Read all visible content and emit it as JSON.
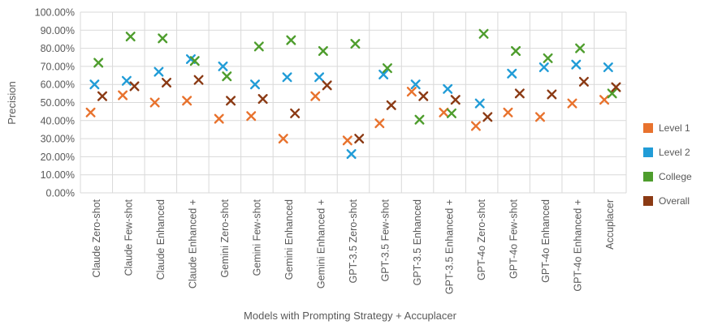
{
  "chart_data": {
    "type": "scatter",
    "marker": "x",
    "title": "",
    "xlabel": "Models with Prompting Strategy + Accuplacer",
    "ylabel": "Precision",
    "ylim": [
      0,
      100
    ],
    "ytick_step": 10,
    "ytick_labels": [
      "0.00%",
      "10.00%",
      "20.00%",
      "30.00%",
      "40.00%",
      "50.00%",
      "60.00%",
      "70.00%",
      "80.00%",
      "90.00%",
      "100.00%"
    ],
    "grid": true,
    "legend_position": "right",
    "categories": [
      "Claude Zero-shot",
      "Claude Few-shot",
      "Claude Enhanced",
      "Claude Enhanced +",
      "Gemini Zero-shot",
      "Gemini Few-shot",
      "Gemini Enhanced",
      "Gemini Enhanced +",
      "GPT-3.5 Zero-shot",
      "GPT-3.5 Few-shot",
      "GPT-3.5 Enhanced",
      "GPT-3.5 Enhanced +",
      "GPT-4o Zero-shot",
      "GPT-4o Few-shot",
      "GPT-4o Enhanced",
      "GPT-4o Enhanced +",
      "Accuplacer"
    ],
    "series": [
      {
        "name": "Level 1",
        "color": "#E8722D",
        "values": [
          44.5,
          54,
          50,
          51,
          41,
          42.5,
          30,
          53.5,
          29,
          38.5,
          56,
          44.5,
          37,
          44.5,
          42,
          49.5,
          51.5
        ]
      },
      {
        "name": "Level 2",
        "color": "#219CD7",
        "values": [
          60,
          62,
          67,
          74,
          70,
          60,
          64,
          64,
          21.5,
          65.5,
          60,
          57.5,
          49.5,
          66,
          69.5,
          71,
          69.5
        ]
      },
      {
        "name": "College",
        "color": "#4E9D2D",
        "values": [
          72,
          86.5,
          85.5,
          73,
          64.5,
          81,
          84.5,
          78.5,
          82.5,
          69,
          40.5,
          44,
          88,
          78.5,
          74.5,
          80,
          55
        ]
      },
      {
        "name": "Overall",
        "color": "#8B3A14",
        "values": [
          53.5,
          59,
          61,
          62.5,
          51,
          52,
          44,
          59.5,
          30,
          48.5,
          53.5,
          51.5,
          42,
          55,
          54.5,
          61.5,
          58.5
        ]
      }
    ],
    "gridline_color": "#D9D9D9",
    "text_color": "#595959"
  }
}
